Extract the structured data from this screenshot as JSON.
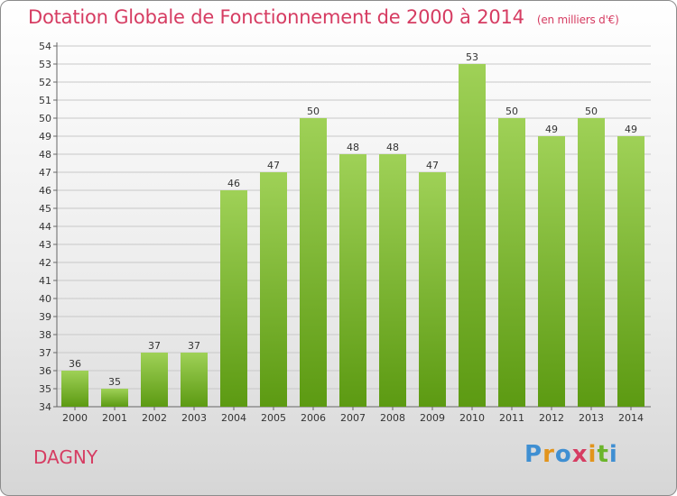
{
  "header": {
    "title": "Dotation Globale de Fonctionnement de 2000 à 2014",
    "units": "(en milliers d'€)"
  },
  "footer": {
    "commune": "DAGNY",
    "logo": {
      "letters": [
        "P",
        "r",
        "o",
        "x",
        "i",
        "t",
        "i"
      ],
      "colors": [
        "#3f8fd2",
        "#e2941c",
        "#3f8fd2",
        "#d63c62",
        "#e2941c",
        "#6bb52b",
        "#3f8fd2"
      ]
    }
  },
  "chart_data": {
    "type": "bar",
    "categories": [
      "2000",
      "2001",
      "2002",
      "2003",
      "2004",
      "2005",
      "2006",
      "2007",
      "2008",
      "2009",
      "2010",
      "2011",
      "2012",
      "2013",
      "2014"
    ],
    "values": [
      36,
      35,
      37,
      37,
      46,
      47,
      50,
      48,
      48,
      47,
      53,
      50,
      49,
      50,
      49
    ],
    "ylim": [
      34,
      54
    ],
    "yticks": [
      34,
      35,
      36,
      37,
      38,
      39,
      40,
      41,
      42,
      43,
      44,
      45,
      46,
      47,
      48,
      49,
      50,
      51,
      52,
      53,
      54
    ],
    "grid": true,
    "colors": {
      "bar_light": "#9fd157",
      "bar_dark": "#5c9a12",
      "grid": "#c8c8c8",
      "axis": "#666666",
      "text": "#333333"
    }
  }
}
